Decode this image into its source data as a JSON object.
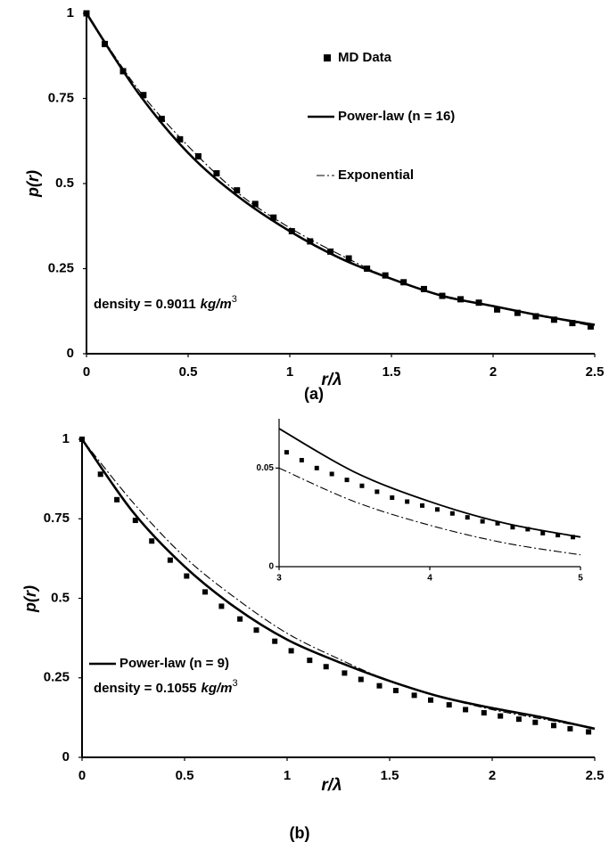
{
  "chart_data": [
    {
      "type": "line",
      "x_label": "r/λ",
      "y_label": "p(r)",
      "panel_label": "(a)",
      "annotation": {
        "text": "density =  0.9011",
        "unit": "kg/m",
        "unit_power": "3"
      },
      "xlim": [
        0,
        2.5
      ],
      "xticks": [
        0,
        0.5,
        1,
        1.5,
        2,
        2.5
      ],
      "ylim": [
        0,
        1
      ],
      "yticks": [
        0,
        0.25,
        0.5,
        0.75,
        1
      ],
      "legend": "upper right",
      "series": [
        {
          "name": "MD Data",
          "style": "square",
          "color": "#000",
          "x": [
            0,
            0.09,
            0.18,
            0.28,
            0.37,
            0.46,
            0.55,
            0.64,
            0.74,
            0.83,
            0.92,
            1.01,
            1.1,
            1.2,
            1.29,
            1.38,
            1.47,
            1.56,
            1.66,
            1.75,
            1.84,
            1.93,
            2.02,
            2.12,
            2.21,
            2.3,
            2.39,
            2.48
          ],
          "values": [
            1,
            0.91,
            0.83,
            0.76,
            0.69,
            0.63,
            0.58,
            0.53,
            0.48,
            0.44,
            0.4,
            0.36,
            0.33,
            0.3,
            0.28,
            0.25,
            0.23,
            0.21,
            0.19,
            0.17,
            0.16,
            0.15,
            0.13,
            0.12,
            0.11,
            0.1,
            0.09,
            0.08
          ]
        },
        {
          "name": "Power-law (n = 16)",
          "style": "solid",
          "color": "#000",
          "x": [
            0,
            0.25,
            0.5,
            0.75,
            1,
            1.25,
            1.5,
            1.75,
            2,
            2.25,
            2.5
          ],
          "values": [
            1,
            0.77,
            0.59,
            0.46,
            0.36,
            0.28,
            0.22,
            0.17,
            0.14,
            0.11,
            0.085
          ]
        },
        {
          "name": "Exponential",
          "style": "dashdot",
          "color": "#000",
          "x": [
            0,
            0.25,
            0.5,
            0.75,
            1,
            1.25,
            1.5,
            1.75,
            2,
            2.25,
            2.5
          ],
          "values": [
            1,
            0.78,
            0.61,
            0.47,
            0.37,
            0.29,
            0.22,
            0.17,
            0.14,
            0.11,
            0.08
          ]
        }
      ]
    },
    {
      "type": "line",
      "x_label": "r/λ",
      "y_label": "p(r)",
      "panel_label": "(b)",
      "annotation": {
        "text": "density =  0.1055",
        "unit": "kg/m",
        "unit_power": "3"
      },
      "xlim": [
        0,
        2.5
      ],
      "xticks": [
        0,
        0.5,
        1,
        1.5,
        2,
        2.5
      ],
      "ylim": [
        0,
        1
      ],
      "yticks": [
        0,
        0.25,
        0.5,
        0.75,
        1
      ],
      "legend": "lower left",
      "series": [
        {
          "style": "square",
          "color": "#000",
          "x": [
            0,
            0.09,
            0.17,
            0.26,
            0.34,
            0.43,
            0.51,
            0.6,
            0.68,
            0.77,
            0.85,
            0.94,
            1.02,
            1.11,
            1.19,
            1.28,
            1.36,
            1.45,
            1.53,
            1.62,
            1.7,
            1.79,
            1.87,
            1.96,
            2.04,
            2.13,
            2.21,
            2.3,
            2.38,
            2.47
          ],
          "values": [
            1,
            0.89,
            0.81,
            0.745,
            0.68,
            0.62,
            0.57,
            0.52,
            0.475,
            0.435,
            0.4,
            0.365,
            0.335,
            0.305,
            0.285,
            0.265,
            0.245,
            0.225,
            0.21,
            0.195,
            0.18,
            0.165,
            0.15,
            0.14,
            0.13,
            0.12,
            0.11,
            0.1,
            0.09,
            0.08
          ]
        },
        {
          "name": "Power-law (n = 9)",
          "style": "solid",
          "color": "#000",
          "x": [
            0,
            0.25,
            0.5,
            0.75,
            1,
            1.25,
            1.5,
            1.75,
            2,
            2.25,
            2.5
          ],
          "values": [
            1,
            0.77,
            0.6,
            0.47,
            0.37,
            0.3,
            0.24,
            0.19,
            0.155,
            0.125,
            0.09
          ]
        },
        {
          "style": "dashdot",
          "color": "#000",
          "x": [
            0,
            0.25,
            0.5,
            0.75,
            1,
            1.25,
            1.5,
            1.75,
            2,
            2.25,
            2.5
          ],
          "values": [
            1,
            0.8,
            0.63,
            0.5,
            0.39,
            0.31,
            0.24,
            0.19,
            0.15,
            0.12,
            0.09
          ]
        }
      ]
    },
    {
      "type": "line",
      "xlim": [
        3,
        5
      ],
      "xticks": [
        3,
        4,
        5
      ],
      "ylim": [
        0,
        0.075
      ],
      "yticks": [
        0,
        0.05
      ],
      "series": [
        {
          "style": "square",
          "color": "#000",
          "x": [
            3.05,
            3.15,
            3.25,
            3.35,
            3.45,
            3.55,
            3.65,
            3.75,
            3.85,
            3.95,
            4.05,
            4.15,
            4.25,
            4.35,
            4.45,
            4.55,
            4.65,
            4.75,
            4.85,
            4.95
          ],
          "values": [
            0.058,
            0.054,
            0.05,
            0.047,
            0.044,
            0.041,
            0.038,
            0.035,
            0.033,
            0.031,
            0.029,
            0.027,
            0.025,
            0.023,
            0.022,
            0.02,
            0.019,
            0.017,
            0.016,
            0.015
          ]
        },
        {
          "style": "solid",
          "color": "#000",
          "x": [
            3,
            3.5,
            4,
            4.5,
            5
          ],
          "values": [
            0.07,
            0.048,
            0.033,
            0.022,
            0.015
          ]
        },
        {
          "style": "dashdot",
          "color": "#000",
          "x": [
            3,
            3.5,
            4,
            4.5,
            5
          ],
          "values": [
            0.05,
            0.033,
            0.021,
            0.012,
            0.006
          ]
        }
      ]
    }
  ]
}
